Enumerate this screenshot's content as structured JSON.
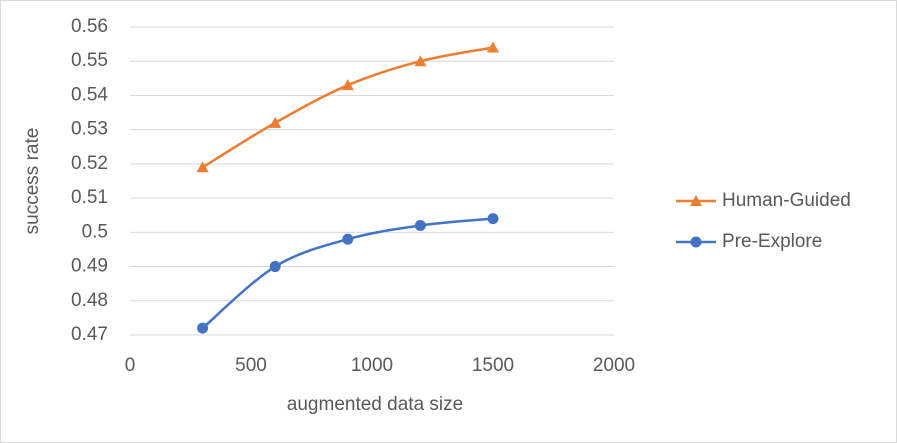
{
  "chart_data": {
    "type": "line",
    "x_label": "augmented data size",
    "y_label": "success rate",
    "x": [
      300,
      600,
      900,
      1200,
      1500
    ],
    "series": [
      {
        "name": "Human-Guided",
        "color": "#ed7d31",
        "marker": "triangle",
        "values": [
          0.519,
          0.532,
          0.543,
          0.55,
          0.554
        ]
      },
      {
        "name": "Pre-Explore",
        "color": "#4472c4",
        "marker": "circle",
        "values": [
          0.472,
          0.49,
          0.498,
          0.502,
          0.504
        ]
      }
    ],
    "xlim": [
      0,
      2000
    ],
    "xticks": [
      0,
      500,
      1000,
      1500,
      2000
    ],
    "ylim": [
      0.47,
      0.56
    ],
    "yticks": [
      0.47,
      0.48,
      0.49,
      0.5,
      0.51,
      0.52,
      0.53,
      0.54,
      0.55,
      0.56
    ],
    "grid": true,
    "smooth": true,
    "legend": "right"
  }
}
